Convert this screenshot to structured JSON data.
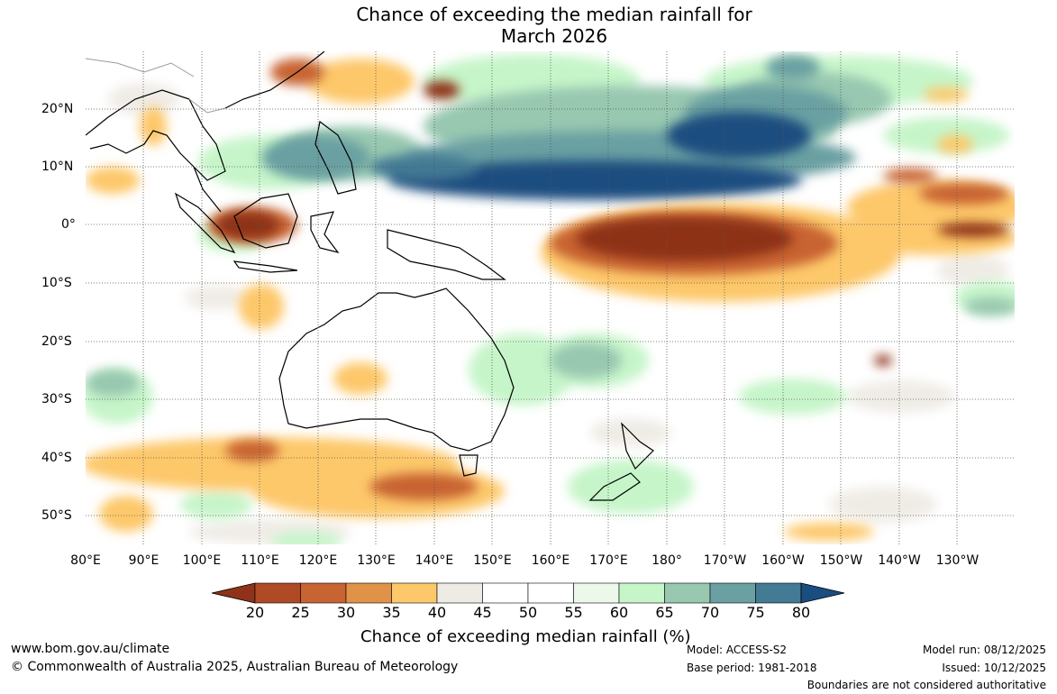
{
  "title": {
    "line1": "Chance of exceeding the median rainfall for",
    "line2": "March 2026"
  },
  "map": {
    "lat_labels": [
      "20°N",
      "10°N",
      "0°",
      "10°S",
      "20°S",
      "30°S",
      "40°S",
      "50°S"
    ],
    "lon_labels": [
      "80°E",
      "90°E",
      "100°E",
      "110°E",
      "120°E",
      "130°E",
      "140°E",
      "150°E",
      "160°E",
      "170°E",
      "180°",
      "170°W",
      "160°W",
      "150°W",
      "140°W",
      "130°W"
    ],
    "region": "Indo-Pacific, Australia",
    "colors": {
      "land_outline": "#000000",
      "grid": "#555555"
    }
  },
  "colorbar": {
    "ticks": [
      "20",
      "25",
      "30",
      "35",
      "40",
      "45",
      "50",
      "55",
      "60",
      "65",
      "70",
      "75",
      "80"
    ],
    "colors": [
      "#8e3319",
      "#b04a24",
      "#c86432",
      "#e09348",
      "#fdc86a",
      "#eeeae4",
      "#ffffff",
      "#ffffff",
      "#ecf8ea",
      "#c6f5c9",
      "#98c8b0",
      "#6aa0a2",
      "#437a94",
      "#1a4d80"
    ],
    "label": "Chance of exceeding median rainfall (%)"
  },
  "footer": {
    "website": "www.bom.gov.au/climate",
    "copyright": "© Commonwealth of Australia 2025, Australian Bureau of Meteorology",
    "model": "Model: ACCESS-S2",
    "base_period": "Base period: 1981-2018",
    "model_run": "Model run: 08/12/2025",
    "issued": "Issued: 10/12/2025",
    "disclaimer": "Boundaries are not considered authoritative"
  }
}
